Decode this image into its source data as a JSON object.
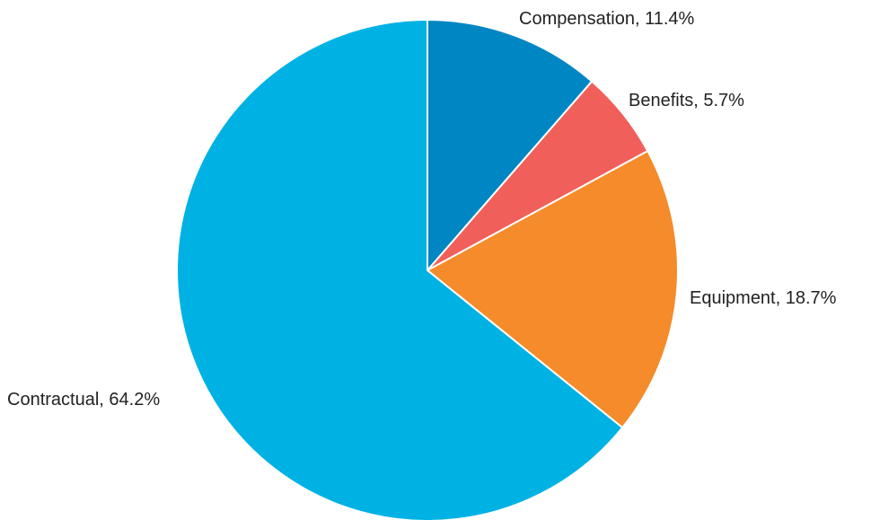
{
  "chart_data": {
    "type": "pie",
    "title": "",
    "start_angle_deg": 0,
    "direction": "clockwise",
    "slices": [
      {
        "name": "Compensation",
        "value": 11.4,
        "label": "Compensation, 11.4%",
        "color": "#0086c3"
      },
      {
        "name": "Benefits",
        "value": 5.7,
        "label": "Benefits, 5.7%",
        "color": "#f15f5a"
      },
      {
        "name": "Equipment",
        "value": 18.7,
        "label": "Equipment, 18.7%",
        "color": "#f58b2a"
      },
      {
        "name": "Contractual",
        "value": 64.2,
        "label": "Contractual, 64.2%",
        "color": "#00b2e3"
      }
    ]
  }
}
